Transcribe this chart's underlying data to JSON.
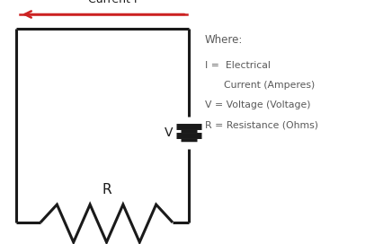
{
  "bg_color": "#ffffff",
  "circuit_color": "#1a1a1a",
  "arrow_color": "#cc2222",
  "text_color": "#595959",
  "current_label": "Current I",
  "where_text": "Where:",
  "legend_line1": "I =  Electrical",
  "legend_line2": "      Current (Amperes)",
  "legend_line3": "V = Voltage (Voltage)",
  "legend_line4": "R = Resistance (Ohms)",
  "V_label": "V",
  "R_label": "R",
  "circuit_lw": 2.2,
  "figsize": [
    4.36,
    2.72
  ],
  "dpi": 100
}
